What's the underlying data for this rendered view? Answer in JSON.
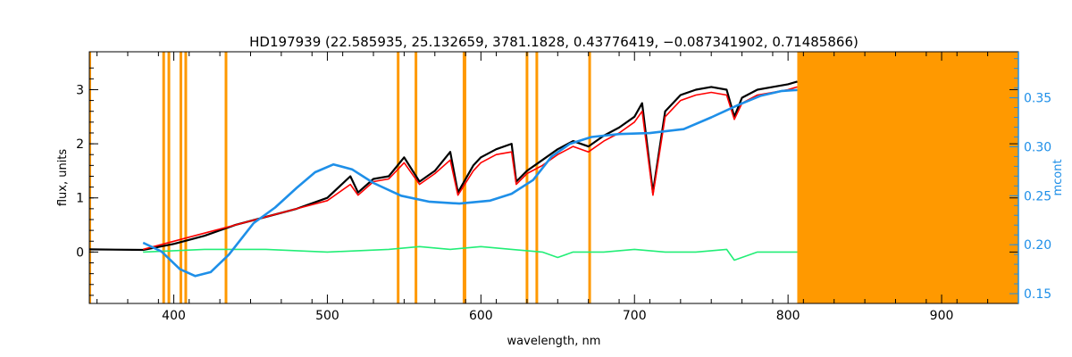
{
  "chart_data": {
    "type": "line",
    "title": "HD197939    (22.585935, 25.132659, 3781.1828, 0.43776419, −0.087341902, 0.71485866)",
    "xlabel": "wavelength, nm",
    "ylabel": "flux, units",
    "y2label": "mcont",
    "xlim": [
      345,
      950
    ],
    "ylim": [
      -0.95,
      3.7
    ],
    "y2lim": [
      0.14,
      0.397
    ],
    "x_ticks": [
      400,
      500,
      600,
      700,
      800,
      900
    ],
    "y_ticks": [
      0,
      1,
      2,
      3
    ],
    "y2_ticks": [
      0.15,
      0.2,
      0.25,
      0.3,
      0.35
    ],
    "x_tick_labels": [
      "400",
      "500",
      "600",
      "700",
      "800",
      "900"
    ],
    "y_tick_labels": [
      "0",
      "1",
      "2",
      "3"
    ],
    "y2_tick_labels": [
      "0.15",
      "0.20",
      "0.25",
      "0.30",
      "0.35"
    ],
    "masked_lines_nm": [
      393.4,
      396.8,
      404.6,
      407.8,
      434.0,
      546.1,
      557.7,
      589.0,
      589.6,
      630.0,
      636.4,
      670.8
    ],
    "masked_region_nm": [
      806,
      950
    ],
    "colors": {
      "observed": "#000000",
      "model": "#ff0000",
      "continuum": "#1e8fe8",
      "residual": "#22ee77",
      "mask": "#ff9900",
      "axis2": "#1e8fe8"
    },
    "series": [
      {
        "id": "observed",
        "x": [
          345,
          380,
          400,
          420,
          440,
          460,
          480,
          500,
          515,
          520,
          530,
          540,
          550,
          560,
          570,
          580,
          585,
          595,
          600,
          610,
          620,
          623,
          630,
          640,
          650,
          660,
          670,
          680,
          690,
          700,
          705,
          712,
          720,
          730,
          740,
          750,
          760,
          765,
          770,
          780,
          790,
          800,
          806
        ],
        "y": [
          0.05,
          0.04,
          0.15,
          0.3,
          0.5,
          0.65,
          0.8,
          1.0,
          1.4,
          1.1,
          1.35,
          1.4,
          1.75,
          1.3,
          1.5,
          1.85,
          1.1,
          1.6,
          1.75,
          1.9,
          2.0,
          1.3,
          1.5,
          1.7,
          1.9,
          2.05,
          1.95,
          2.15,
          2.3,
          2.5,
          2.75,
          1.1,
          2.6,
          2.9,
          3.0,
          3.05,
          3.0,
          2.5,
          2.85,
          3.0,
          3.05,
          3.1,
          3.15
        ]
      },
      {
        "id": "model",
        "x": [
          380,
          400,
          420,
          440,
          460,
          480,
          500,
          515,
          520,
          530,
          540,
          550,
          560,
          570,
          580,
          585,
          595,
          600,
          610,
          620,
          623,
          630,
          640,
          650,
          660,
          670,
          680,
          690,
          700,
          705,
          712,
          720,
          730,
          740,
          750,
          760,
          765,
          770,
          780,
          790,
          800,
          806
        ],
        "y": [
          0.05,
          0.2,
          0.35,
          0.5,
          0.65,
          0.8,
          0.95,
          1.25,
          1.05,
          1.3,
          1.35,
          1.65,
          1.25,
          1.45,
          1.7,
          1.05,
          1.5,
          1.65,
          1.8,
          1.85,
          1.25,
          1.45,
          1.6,
          1.8,
          1.95,
          1.85,
          2.05,
          2.2,
          2.4,
          2.6,
          1.05,
          2.5,
          2.8,
          2.9,
          2.95,
          2.9,
          2.45,
          2.75,
          2.9,
          2.95,
          3.0,
          3.05
        ]
      },
      {
        "id": "continuum",
        "axis": "y2",
        "x": [
          380,
          392,
          404,
          414,
          424,
          436,
          452,
          466,
          480,
          492,
          504,
          516,
          530,
          548,
          566,
          586,
          606,
          620,
          634,
          646,
          658,
          672,
          690,
          710,
          732,
          750,
          768,
          782,
          796,
          806
        ],
        "y": [
          0.202,
          0.193,
          0.175,
          0.168,
          0.172,
          0.19,
          0.222,
          0.238,
          0.258,
          0.274,
          0.282,
          0.277,
          0.263,
          0.25,
          0.244,
          0.242,
          0.245,
          0.252,
          0.266,
          0.29,
          0.303,
          0.31,
          0.313,
          0.314,
          0.318,
          0.33,
          0.343,
          0.352,
          0.357,
          0.358
        ]
      },
      {
        "id": "residual",
        "x": [
          380,
          420,
          460,
          500,
          540,
          560,
          580,
          600,
          620,
          640,
          650,
          660,
          680,
          700,
          720,
          740,
          760,
          765,
          780,
          800,
          806
        ],
        "y": [
          0.0,
          0.05,
          0.05,
          0.0,
          0.05,
          0.1,
          0.05,
          0.1,
          0.05,
          0.0,
          -0.1,
          0.0,
          0.0,
          0.05,
          0.0,
          0.0,
          0.05,
          -0.15,
          0.0,
          0.0,
          0.0
        ]
      }
    ]
  }
}
